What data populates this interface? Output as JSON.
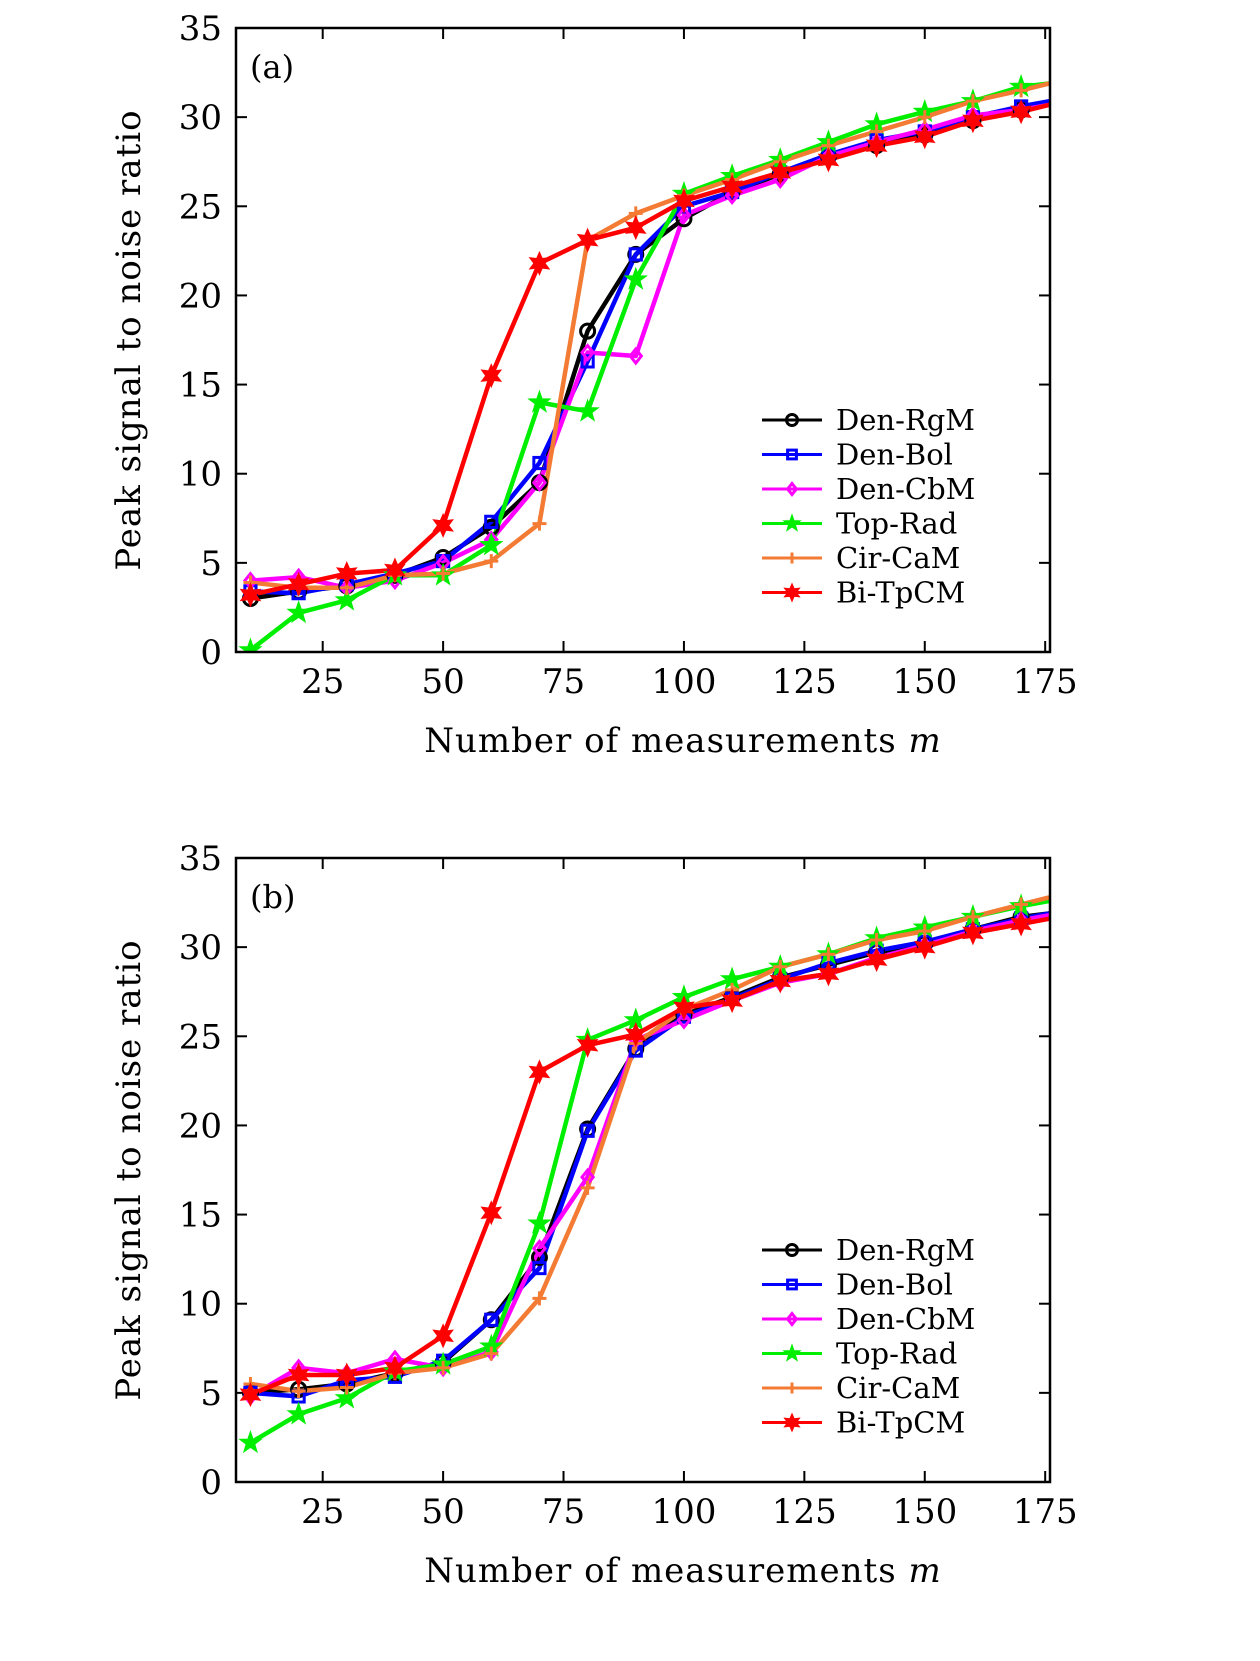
{
  "chart_data": [
    {
      "type": "line",
      "panel_label": "(a)",
      "xlabel": "Number of measurements",
      "xlabel_var": "m",
      "ylabel": "Peak signal to noise ratio",
      "xlim": [
        7,
        176
      ],
      "ylim": [
        0,
        35
      ],
      "xticks": [
        25,
        50,
        75,
        100,
        125,
        150,
        175
      ],
      "yticks": [
        0,
        5,
        10,
        15,
        20,
        25,
        30,
        35
      ],
      "legend_position": "lower-right",
      "x": [
        10,
        20,
        30,
        40,
        50,
        60,
        70,
        80,
        90,
        100,
        110,
        120,
        130,
        140,
        150,
        160,
        170,
        176
      ],
      "series": [
        {
          "name": "Den-RgM",
          "color": "#000000",
          "marker": "circle",
          "values": [
            3.0,
            3.4,
            3.7,
            4.3,
            5.3,
            7.0,
            9.5,
            18.0,
            22.3,
            24.3,
            25.8,
            26.8,
            27.8,
            28.4,
            29.0,
            29.8,
            30.4,
            30.8
          ]
        },
        {
          "name": "Den-Bol",
          "color": "#0000ff",
          "marker": "square",
          "values": [
            3.4,
            3.3,
            3.8,
            4.4,
            5.1,
            7.3,
            10.6,
            16.3,
            22.3,
            25.0,
            25.8,
            26.9,
            27.9,
            28.7,
            29.2,
            30.0,
            30.6,
            30.9
          ]
        },
        {
          "name": "Den-CbM",
          "color": "#ff00ff",
          "marker": "diamond",
          "values": [
            4.0,
            4.2,
            3.6,
            4.0,
            5.0,
            6.3,
            9.5,
            16.8,
            16.6,
            24.5,
            25.6,
            26.5,
            27.8,
            28.6,
            29.3,
            30.1,
            30.4,
            30.7
          ]
        },
        {
          "name": "Top-Rad",
          "color": "#00ee00",
          "marker": "star5",
          "values": [
            0.1,
            2.2,
            2.9,
            4.3,
            4.3,
            6.0,
            14.0,
            13.5,
            20.9,
            25.7,
            26.7,
            27.6,
            28.6,
            29.6,
            30.3,
            30.9,
            31.7,
            31.9
          ]
        },
        {
          "name": "Cir-CaM",
          "color": "#f47b34",
          "marker": "plus",
          "values": [
            3.9,
            3.6,
            3.6,
            4.3,
            4.4,
            5.1,
            7.2,
            23.1,
            24.6,
            25.6,
            26.5,
            27.5,
            28.4,
            29.2,
            30.0,
            30.9,
            31.5,
            31.9
          ]
        },
        {
          "name": "Bi-TpCM",
          "color": "#ff0000",
          "marker": "star6",
          "values": [
            3.2,
            3.8,
            4.4,
            4.6,
            7.1,
            15.5,
            21.8,
            23.1,
            23.8,
            25.3,
            26.1,
            26.9,
            27.6,
            28.4,
            28.9,
            29.8,
            30.3,
            30.7
          ]
        }
      ]
    },
    {
      "type": "line",
      "panel_label": "(b)",
      "xlabel": "Number of measurements",
      "xlabel_var": "m",
      "ylabel": "Peak signal to noise ratio",
      "xlim": [
        7,
        176
      ],
      "ylim": [
        0,
        35
      ],
      "xticks": [
        25,
        50,
        75,
        100,
        125,
        150,
        175
      ],
      "yticks": [
        0,
        5,
        10,
        15,
        20,
        25,
        30,
        35
      ],
      "legend_position": "lower-right",
      "x": [
        10,
        20,
        30,
        40,
        50,
        60,
        70,
        80,
        90,
        100,
        110,
        120,
        130,
        140,
        150,
        160,
        170,
        176
      ],
      "series": [
        {
          "name": "Den-RgM",
          "color": "#000000",
          "marker": "circle",
          "values": [
            5.0,
            5.2,
            5.5,
            6.1,
            6.7,
            9.1,
            12.6,
            19.8,
            24.3,
            26.2,
            27.2,
            28.3,
            29.0,
            29.7,
            30.2,
            31.0,
            31.7,
            31.9
          ]
        },
        {
          "name": "Den-Bol",
          "color": "#0000ff",
          "marker": "square",
          "values": [
            5.0,
            4.8,
            5.7,
            5.9,
            6.8,
            9.1,
            12.0,
            19.7,
            24.2,
            26.1,
            27.1,
            28.2,
            29.1,
            29.8,
            30.3,
            31.0,
            31.6,
            31.9
          ]
        },
        {
          "name": "Den-CbM",
          "color": "#ff00ff",
          "marker": "diamond",
          "values": [
            4.8,
            6.4,
            6.1,
            6.9,
            6.4,
            7.3,
            13.1,
            17.1,
            24.8,
            25.9,
            27.0,
            28.0,
            28.5,
            29.4,
            30.1,
            30.9,
            31.5,
            31.8
          ]
        },
        {
          "name": "Top-Rad",
          "color": "#00ee00",
          "marker": "star5",
          "values": [
            2.2,
            3.8,
            4.7,
            6.2,
            6.6,
            7.6,
            14.5,
            24.8,
            25.9,
            27.2,
            28.2,
            28.9,
            29.6,
            30.5,
            31.1,
            31.7,
            32.3,
            32.6
          ]
        },
        {
          "name": "Cir-CaM",
          "color": "#f47b34",
          "marker": "plus",
          "values": [
            5.5,
            5.1,
            5.3,
            6.1,
            6.4,
            7.2,
            10.3,
            16.5,
            24.6,
            26.5,
            27.6,
            28.9,
            29.6,
            30.4,
            30.9,
            31.7,
            32.4,
            32.8
          ]
        },
        {
          "name": "Bi-TpCM",
          "color": "#ff0000",
          "marker": "star6",
          "values": [
            4.9,
            6.0,
            6.0,
            6.4,
            8.2,
            15.1,
            23.0,
            24.5,
            25.1,
            26.6,
            27.0,
            28.1,
            28.5,
            29.3,
            30.0,
            30.8,
            31.3,
            31.6
          ]
        }
      ]
    }
  ]
}
